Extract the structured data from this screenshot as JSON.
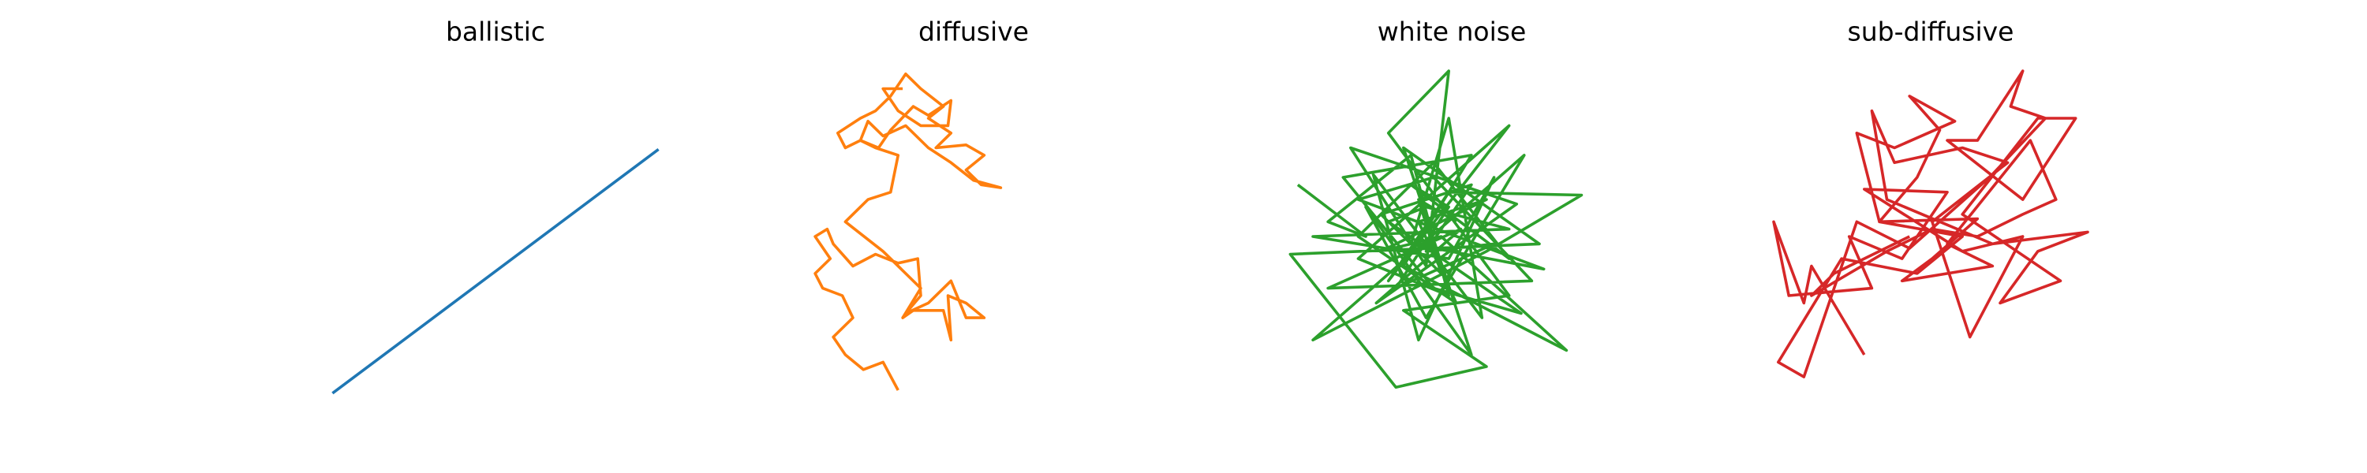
{
  "chart_data": [
    {
      "type": "line",
      "title": "ballistic",
      "color": "#1f77b4",
      "xlim": [
        213,
        443
      ],
      "ylim": [
        280,
        40
      ],
      "x": [
        220,
        436
      ],
      "values": [
        266,
        101
      ]
    },
    {
      "type": "line",
      "title": "diffusive",
      "color": "#ff7f0e",
      "xlim": [
        530,
        760
      ],
      "ylim": [
        280,
        40
      ],
      "x": [
        595,
        585,
        572,
        560,
        552,
        565,
        558,
        545,
        540,
        550,
        540,
        548,
        552,
        565,
        580,
        595,
        608,
        610,
        600,
        615,
        630,
        640,
        652,
        640,
        628,
        630,
        625,
        605,
        598,
        610,
        585,
        560,
        575,
        590,
        595,
        580,
        570,
        560,
        555,
        570,
        580,
        590,
        600,
        610,
        625,
        615,
        630,
        620,
        640,
        652,
        640,
        650,
        663,
        645,
        630,
        615,
        600,
        585,
        575,
        570,
        582,
        590,
        605,
        615,
        630,
        628,
        610,
        595,
        585,
        598
      ],
      "values": [
        264,
        245,
        250,
        240,
        228,
        215,
        200,
        195,
        185,
        175,
        160,
        155,
        165,
        180,
        172,
        178,
        175,
        200,
        212,
        205,
        190,
        215,
        215,
        205,
        200,
        230,
        210,
        210,
        215,
        195,
        170,
        150,
        135,
        130,
        105,
        100,
        95,
        100,
        90,
        80,
        75,
        65,
        50,
        60,
        72,
        80,
        90,
        100,
        98,
        105,
        115,
        125,
        127,
        122,
        110,
        100,
        85,
        92,
        82,
        95,
        100,
        88,
        72,
        78,
        68,
        85,
        85,
        75,
        60,
        60
      ]
    },
    {
      "type": "line",
      "title": "white noise",
      "color": "#2ca02c",
      "xlim": [
        847,
        1077
      ],
      "ylim": [
        280,
        40
      ],
      "x": [
        860,
        905,
        880,
        935,
        960,
        900,
        1000,
        920,
        960,
        1048,
        985,
        870,
        1010,
        945,
        905,
        975,
        930,
        1020,
        855,
        925,
        985,
        930,
        1000,
        920,
        960,
        945,
        895,
        1005,
        912,
        968,
        880,
        1015,
        950,
        900,
        1023,
        935,
        960,
        982,
        910,
        940,
        990,
        960,
        870,
        1000,
        945,
        920,
        1008,
        950,
        890,
        975,
        930,
        1038,
        955,
        915,
        985,
        940,
        965,
        900,
        950,
        1000,
        935,
        960,
        925,
        990,
        945,
        975,
        915,
        955,
        940,
        965
      ],
      "values": [
        125,
        160,
        150,
        105,
        200,
        175,
        85,
        190,
        130,
        132,
        170,
        230,
        105,
        215,
        140,
        240,
        100,
        165,
        172,
        262,
        248,
        210,
        200,
        90,
        48,
        180,
        100,
        138,
        205,
        155,
        195,
        190,
        120,
        135,
        182,
        165,
        80,
        215,
        118,
        230,
        120,
        175,
        160,
        155,
        140,
        150,
        212,
        195,
        120,
        105,
        180,
        237,
        160,
        170,
        135,
        150,
        205,
        160,
        110,
        175,
        125,
        140,
        195,
        165,
        170,
        125,
        145,
        185,
        135,
        150
      ]
    },
    {
      "type": "line",
      "title": "sub-diffusive",
      "color": "#d62728",
      "xlim": [
        1164,
        1394
      ],
      "ylim": [
        280,
        40
      ],
      "x": [
        1235,
        1200,
        1195,
        1175,
        1185,
        1240,
        1225,
        1260,
        1290,
        1235,
        1300,
        1340,
        1305,
        1280,
        1330,
        1300,
        1255,
        1240,
        1250,
        1320,
        1383,
        1350,
        1325,
        1365,
        1300,
        1350,
        1375,
        1340,
        1290,
        1310,
        1340,
        1332,
        1355,
        1318,
        1265,
        1230,
        1195,
        1178,
        1220,
        1270,
        1300,
        1245,
        1270,
        1285,
        1265,
        1295,
        1255,
        1230,
        1245,
        1310,
        1280,
        1260,
        1320,
        1290,
        1345,
        1362,
        1340,
        1310,
        1280,
        1250,
        1200,
        1215,
        1265
      ],
      "values": [
        240,
        180,
        205,
        150,
        200,
        195,
        160,
        175,
        130,
        128,
        170,
        160,
        228,
        150,
        110,
        100,
        110,
        75,
        135,
        165,
        157,
        170,
        205,
        190,
        145,
        80,
        80,
        135,
        95,
        95,
        48,
        72,
        80,
        120,
        168,
        150,
        255,
        245,
        175,
        185,
        160,
        150,
        120,
        88,
        65,
        82,
        100,
        90,
        150,
        148,
        175,
        190,
        180,
        165,
        95,
        135,
        145,
        160,
        155,
        170,
        200,
        185,
        160
      ]
    }
  ]
}
